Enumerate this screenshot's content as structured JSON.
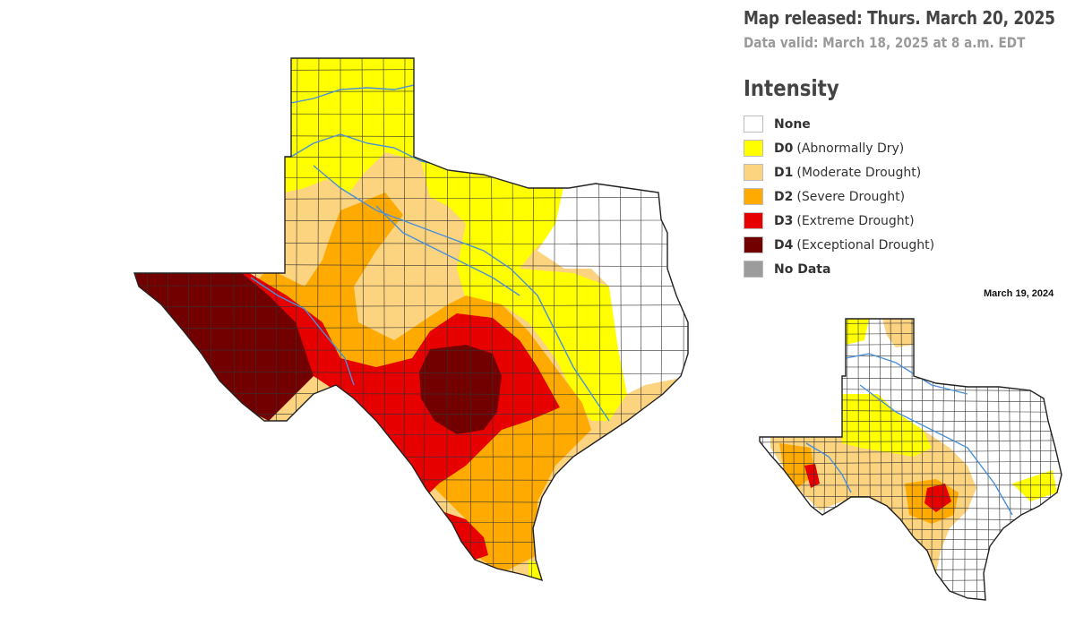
{
  "header": {
    "released": "Map released: Thurs. March 20, 2025",
    "valid": "Data valid: March 18, 2025 at 8 a.m. EDT"
  },
  "legend": {
    "title": "Intensity",
    "items": [
      {
        "code": "None",
        "desc": "",
        "color": "#ffffff"
      },
      {
        "code": "D0",
        "desc": "(Abnormally Dry)",
        "color": "#ffff00"
      },
      {
        "code": "D1",
        "desc": "(Moderate Drought)",
        "color": "#fcd37f"
      },
      {
        "code": "D2",
        "desc": "(Severe Drought)",
        "color": "#ffaa00"
      },
      {
        "code": "D3",
        "desc": "(Extreme Drought)",
        "color": "#e60000"
      },
      {
        "code": "D4",
        "desc": "(Exceptional Drought)",
        "color": "#730000"
      },
      {
        "code": "No Data",
        "desc": "",
        "color": "#9c9c9c"
      }
    ]
  },
  "inset": {
    "date": "March 19, 2024"
  },
  "colors": {
    "none": "#ffffff",
    "d0": "#ffff00",
    "d1": "#fcd37f",
    "d2": "#ffaa00",
    "d3": "#e60000",
    "d4": "#730000",
    "river": "#4a90d9"
  }
}
